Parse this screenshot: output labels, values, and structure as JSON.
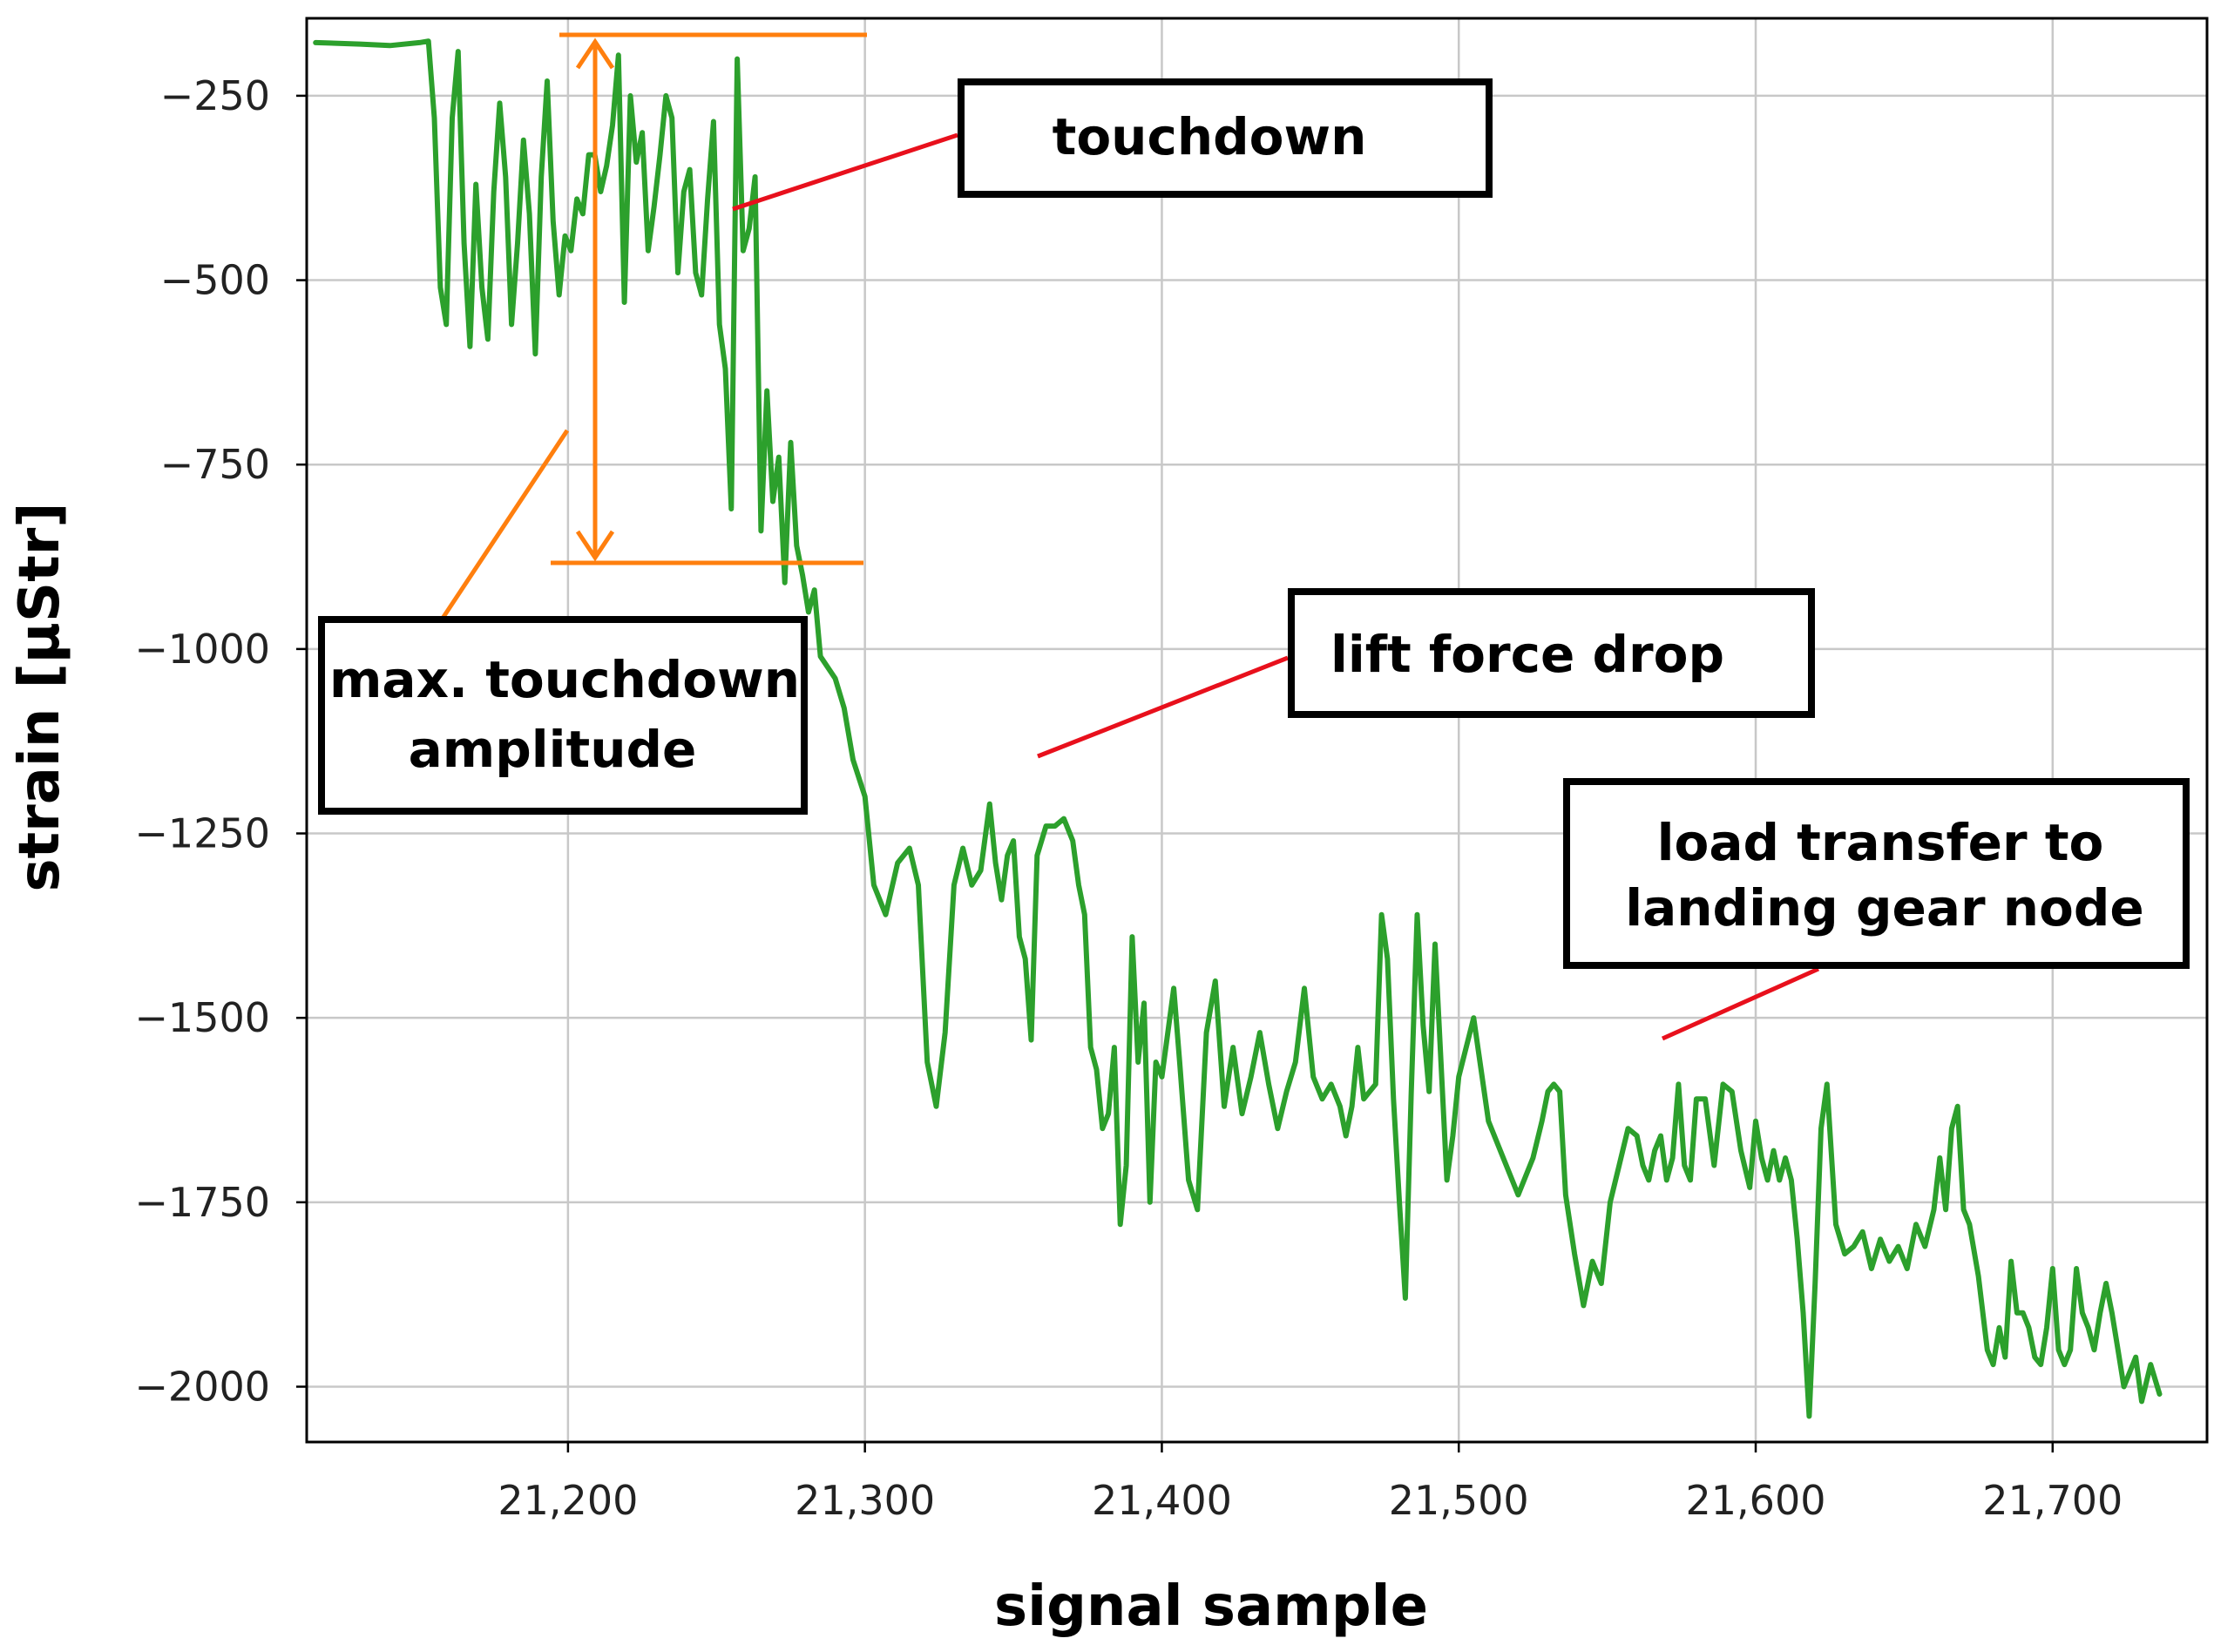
{
  "chart_data": {
    "type": "line",
    "title": "",
    "xlabel": "signal sample",
    "ylabel": "strain [µStr]",
    "xlim": [
      21112,
      21752
    ],
    "ylim": [
      -2075,
      -145
    ],
    "x_ticks": [
      21200,
      21300,
      21400,
      21500,
      21600,
      21700
    ],
    "x_tick_labels": [
      "21,200",
      "21,300",
      "21,400",
      "21,500",
      "21,600",
      "21,700"
    ],
    "y_ticks": [
      -250,
      -500,
      -750,
      -1000,
      -1250,
      -1500,
      -1750,
      -2000
    ],
    "y_tick_labels": [
      "−250",
      "−500",
      "−750",
      "−1000",
      "−1250",
      "−1500",
      "−1750",
      "−2000"
    ],
    "grid": true,
    "legend": "none",
    "series_color": "#2ca02c",
    "annotation_line_color": "#ff7f0e",
    "pointer_color": "#e8101c",
    "series": [
      {
        "x": [
          21115,
          21130,
          21140,
          21150,
          21153,
          21155,
          21157,
          21159,
          21161,
          21163,
          21165,
          21167,
          21169,
          21171,
          21173,
          21175,
          21177,
          21179,
          21181,
          21183,
          21185,
          21187,
          21189,
          21191,
          21193,
          21195,
          21197,
          21199,
          21201,
          21203,
          21205,
          21207,
          21209,
          21211,
          21213,
          21215,
          21217,
          21219,
          21221,
          21223,
          21225,
          21227,
          21229,
          21231,
          21233,
          21235,
          21237,
          21239,
          21241,
          21243,
          21245,
          21247,
          21249,
          21251,
          21253,
          21255,
          21257,
          21259,
          21261,
          21263,
          21265,
          21267,
          21269,
          21271,
          21273,
          21275,
          21277,
          21279,
          21281,
          21283,
          21285,
          21290,
          21293,
          21296,
          21300,
          21303,
          21307,
          21311,
          21315,
          21318,
          21321,
          21324,
          21327,
          21330,
          21333,
          21336,
          21339,
          21342,
          21344,
          21346,
          21348,
          21350,
          21352,
          21354,
          21356,
          21358,
          21361,
          21364,
          21367,
          21370,
          21372,
          21374,
          21376,
          21378,
          21380,
          21382,
          21384,
          21386,
          21388,
          21390,
          21392,
          21394,
          21396,
          21398,
          21400,
          21402,
          21404,
          21406,
          21409,
          21412,
          21415,
          21418,
          21421,
          21424,
          21427,
          21430,
          21433,
          21436,
          21439,
          21442,
          21445,
          21448,
          21451,
          21454,
          21457,
          21460,
          21462,
          21464,
          21466,
          21468,
          21470,
          21472,
          21474,
          21476,
          21478,
          21480,
          21482,
          21484,
          21486,
          21488,
          21490,
          21492,
          21494,
          21496,
          21498,
          21500,
          21505,
          21510,
          21515,
          21520,
          21525,
          21528,
          21530,
          21532,
          21534,
          21536,
          21539,
          21542,
          21545,
          21548,
          21551,
          21554,
          21557,
          21560,
          21562,
          21564,
          21566,
          21568,
          21570,
          21572,
          21574,
          21576,
          21578,
          21580,
          21583,
          21586,
          21589,
          21592,
          21595,
          21598,
          21600,
          21602,
          21604,
          21606,
          21608,
          21610,
          21612,
          21614,
          21616,
          21618,
          21620,
          21622,
          21624,
          21627,
          21630,
          21633,
          21636,
          21639,
          21642,
          21645,
          21648,
          21651,
          21654,
          21657,
          21660,
          21662,
          21664,
          21666,
          21668,
          21670,
          21672,
          21675,
          21678,
          21680,
          21682,
          21684,
          21686,
          21688,
          21690,
          21692,
          21694,
          21696,
          21698,
          21700,
          21702,
          21704,
          21706,
          21708,
          21710,
          21712,
          21714,
          21716,
          21718,
          21720,
          21722,
          21724,
          21726,
          21728,
          21730,
          21733,
          21736
        ],
        "y": [
          -178,
          -180,
          -182,
          -178,
          -176,
          -280,
          -510,
          -560,
          -280,
          -190,
          -450,
          -590,
          -370,
          -510,
          -580,
          -380,
          -260,
          -360,
          -560,
          -450,
          -310,
          -410,
          -600,
          -360,
          -230,
          -420,
          -520,
          -440,
          -460,
          -390,
          -410,
          -330,
          -330,
          -380,
          -345,
          -290,
          -195,
          -530,
          -250,
          -340,
          -300,
          -460,
          -400,
          -330,
          -250,
          -280,
          -490,
          -380,
          -350,
          -490,
          -520,
          -390,
          -285,
          -560,
          -620,
          -810,
          -200,
          -460,
          -430,
          -360,
          -840,
          -650,
          -800,
          -740,
          -910,
          -720,
          -860,
          -900,
          -950,
          -920,
          -1010,
          -1040,
          -1080,
          -1150,
          -1200,
          -1320,
          -1360,
          -1290,
          -1270,
          -1320,
          -1560,
          -1620,
          -1520,
          -1320,
          -1270,
          -1320,
          -1300,
          -1210,
          -1290,
          -1340,
          -1280,
          -1260,
          -1390,
          -1420,
          -1530,
          -1280,
          -1240,
          -1240,
          -1230,
          -1260,
          -1320,
          -1360,
          -1540,
          -1570,
          -1650,
          -1630,
          -1540,
          -1780,
          -1700,
          -1390,
          -1560,
          -1480,
          -1750,
          -1560,
          -1580,
          -1520,
          -1460,
          -1560,
          -1720,
          -1760,
          -1520,
          -1450,
          -1620,
          -1540,
          -1630,
          -1580,
          -1520,
          -1590,
          -1650,
          -1600,
          -1560,
          -1460,
          -1580,
          -1610,
          -1590,
          -1620,
          -1660,
          -1620,
          -1540,
          -1610,
          -1600,
          -1590,
          -1360,
          -1420,
          -1610,
          -1750,
          -1880,
          -1600,
          -1360,
          -1510,
          -1600,
          -1400,
          -1560,
          -1720,
          -1660,
          -1580,
          -1500,
          -1640,
          -1690,
          -1740,
          -1690,
          -1640,
          -1600,
          -1590,
          -1600,
          -1740,
          -1820,
          -1890,
          -1830,
          -1860,
          -1750,
          -1700,
          -1650,
          -1660,
          -1700,
          -1720,
          -1680,
          -1660,
          -1720,
          -1690,
          -1590,
          -1700,
          -1720,
          -1610,
          -1610,
          -1700,
          -1590,
          -1600,
          -1680,
          -1730,
          -1640,
          -1690,
          -1720,
          -1680,
          -1720,
          -1690,
          -1720,
          -1800,
          -1900,
          -2040,
          -1860,
          -1650,
          -1590,
          -1780,
          -1820,
          -1810,
          -1790,
          -1840,
          -1800,
          -1830,
          -1810,
          -1840,
          -1780,
          -1810,
          -1760,
          -1690,
          -1760,
          -1650,
          -1620,
          -1760,
          -1780,
          -1850,
          -1950,
          -1970,
          -1920,
          -1960,
          -1830,
          -1900,
          -1900,
          -1920,
          -1960,
          -1970,
          -1920,
          -1840,
          -1950,
          -1970,
          -1950,
          -1840,
          -1900,
          -1920,
          -1950,
          -1900,
          -1860,
          -1900,
          -1950,
          -2000,
          -1980,
          -1960,
          -2020,
          -1970,
          -2010
        ]
      }
    ],
    "annotations": {
      "touchdown": "touchdown",
      "lift_force_drop": "lift force drop",
      "max_amplitude_line1": "max. touchdown",
      "max_amplitude_line2": "amplitude",
      "load_transfer_line1": "load transfer to",
      "load_transfer_line2": "landing gear node"
    }
  }
}
